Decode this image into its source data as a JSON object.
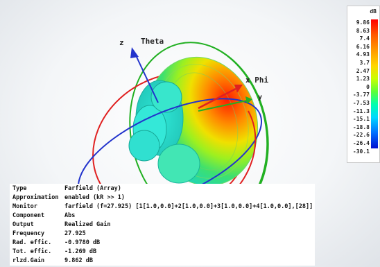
{
  "axes": {
    "z": "z",
    "theta": "Theta",
    "phi": "x Phi",
    "y": "y"
  },
  "legend": {
    "unit": "dB",
    "ticks": [
      "9.86",
      "8.63",
      "7.4",
      "6.16",
      "4.93",
      "3.7",
      "2.47",
      "1.23",
      "0",
      "-3.77",
      "-7.53",
      "-11.3",
      "-15.1",
      "-18.8",
      "-22.6",
      "-26.4",
      "-30.1"
    ]
  },
  "info": [
    {
      "key": "Type",
      "value": "Farfield (Array)"
    },
    {
      "key": "Approximation",
      "value": "enabled (kR >> 1)"
    },
    {
      "key": "Monitor",
      "value": "farfield (f=27.925) [1[1.0,0.0]+2[1.0,0.0]+3[1.0,0.0]+4[1.0,0.0],[28]]"
    },
    {
      "key": "Component",
      "value": "Abs"
    },
    {
      "key": "Output",
      "value": "Realized Gain"
    },
    {
      "key": "Frequency",
      "value": "27.925"
    },
    {
      "key": "Rad. effic.",
      "value": "-0.9780 dB"
    },
    {
      "key": "Tot. effic.",
      "value": "-1.269 dB"
    },
    {
      "key": "rlzd.Gain",
      "value": "9.862 dB"
    }
  ],
  "colors": {
    "red_axis": "#e02020",
    "green_axis": "#22b022",
    "blue_axis": "#2233cc"
  }
}
